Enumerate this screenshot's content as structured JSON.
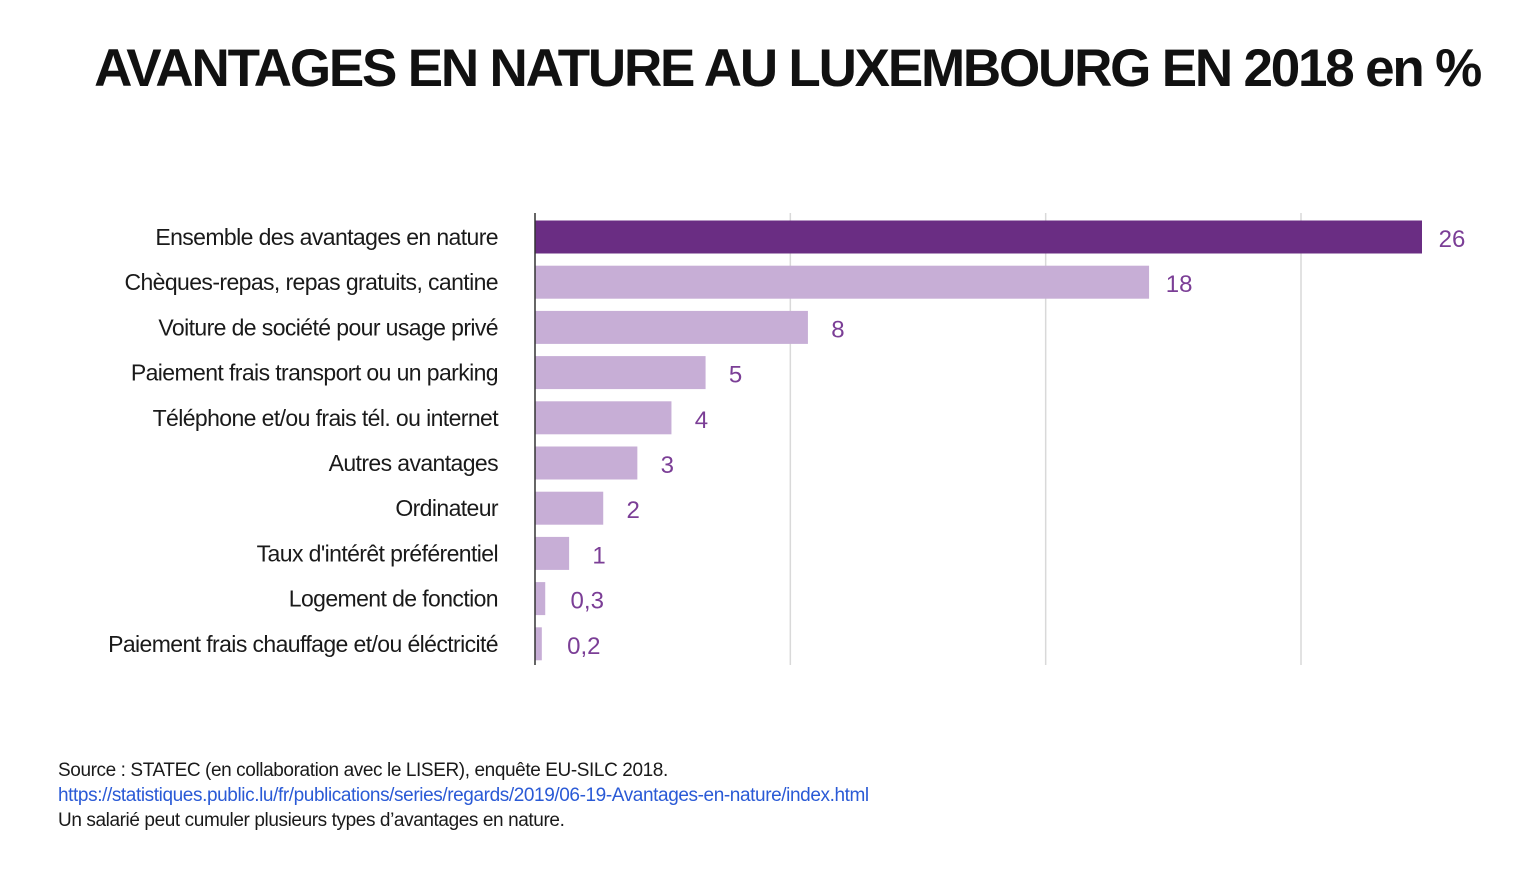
{
  "title": "AVANTAGES EN NATURE AU LUXEMBOURG EN 2018 en %",
  "colors": {
    "highlight_bar": "#6a2d83",
    "regular_bar": "#c7aed6",
    "value_text": "#7b3e96",
    "gridline": "#d9d9d9",
    "axis": "#333333",
    "link": "#2a5ad6"
  },
  "chart_data": {
    "type": "bar",
    "orientation": "horizontal",
    "title": "AVANTAGES EN NATURE AU LUXEMBOURG EN 2018 en %",
    "categories": [
      "Ensemble des avantages en nature",
      "Chèques-repas, repas gratuits, cantine",
      "Voiture de société pour usage privé",
      "Paiement frais transport ou un parking",
      "Téléphone et/ou frais tél. ou internet",
      "Autres avantages",
      "Ordinateur",
      "Taux d'intérêt préférentiel",
      "Logement de fonction",
      "Paiement frais chauffage et/ou éléctricité"
    ],
    "values": [
      26,
      18,
      8,
      5,
      4,
      3,
      2,
      1,
      0.3,
      0.2
    ],
    "value_labels": [
      "26",
      "18",
      "8",
      "5",
      "4",
      "3",
      "2",
      "1",
      "0,3",
      "0,2"
    ],
    "highlighted_index": 0,
    "xlim": [
      0,
      30
    ],
    "grid_values": [
      7.5,
      15,
      22.5
    ],
    "grid": true,
    "xlabel": "",
    "ylabel": ""
  },
  "footer": {
    "source": "Source : STATEC (en collaboration avec le LISER), enquête EU-SILC 2018.",
    "url": "https://statistiques.public.lu/fr/publications/series/regards/2019/06-19-Avantages-en-nature/index.html",
    "note": "Un salarié peut cumuler plusieurs types d’avantages en nature."
  }
}
